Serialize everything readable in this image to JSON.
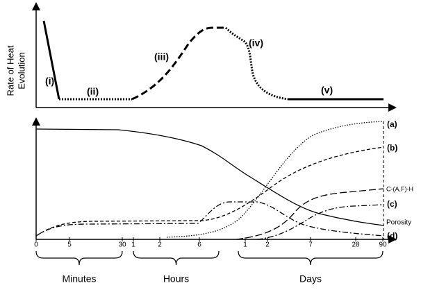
{
  "top_panel": {
    "y_label": [
      "Rate of Heat",
      "Evolution"
    ],
    "stages": [
      "(i)",
      "(ii)",
      "(iii)",
      "(iv)",
      "(v)"
    ]
  },
  "bottom_panel": {
    "curve_labels": [
      "(a)",
      "(b)",
      "C-(A,F)-H",
      "(c)",
      "Porosity",
      "(d)"
    ],
    "x_ticks": [
      "0",
      "5",
      "30",
      "1",
      "2",
      "6",
      "1",
      "2",
      "7",
      "28",
      "90"
    ]
  },
  "time_groups": [
    "Minutes",
    "Hours",
    "Days"
  ]
}
